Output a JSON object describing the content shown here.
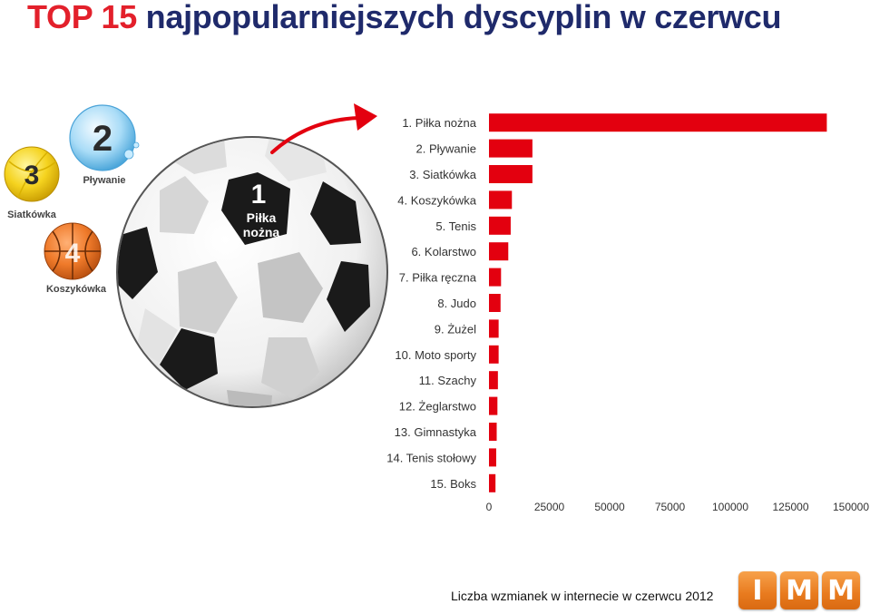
{
  "title": {
    "part1": "TOP 15",
    "part2": "najpopularniejszych dyscyplin w czerwcu"
  },
  "illustration": {
    "ball1_number": "1",
    "ball1_label_line1": "Piłka",
    "ball1_label_line2": "nożna",
    "ball2_number": "2",
    "ball2_label": "Pływanie",
    "ball3_number": "3",
    "ball3_label": "Siatkówka",
    "ball4_number": "4",
    "ball4_label": "Koszykówka"
  },
  "colors": {
    "bar": "#e3000f",
    "title_red": "#e3202b",
    "title_blue": "#1f2a6b",
    "logo": "#e87a1e"
  },
  "chart_data": {
    "type": "bar",
    "orientation": "horizontal",
    "categories": [
      "1. Piłka nożna",
      "2. Pływanie",
      "3. Siatkówka",
      "4. Koszykówka",
      "5. Tenis",
      "6. Kolarstwo",
      "7. Piłka ręczna",
      "8. Judo",
      "9. Żużel",
      "10. Moto sporty",
      "11. Szachy",
      "12. Żeglarstwo",
      "13. Gimnastyka",
      "14. Tenis stołowy",
      "15. Boks"
    ],
    "values": [
      140000,
      18000,
      18000,
      9500,
      9000,
      8000,
      5000,
      4800,
      4000,
      4000,
      3700,
      3500,
      3200,
      3000,
      2700
    ],
    "xlim": [
      0,
      150000
    ],
    "xticks": [
      "0",
      "25000",
      "50000",
      "75000",
      "100000",
      "125000",
      "150000"
    ],
    "xlabel": "Liczba wzmianek w internecie w czerwcu 2012",
    "grid": false
  },
  "logo": {
    "letters": [
      "I",
      "M",
      "M"
    ]
  }
}
